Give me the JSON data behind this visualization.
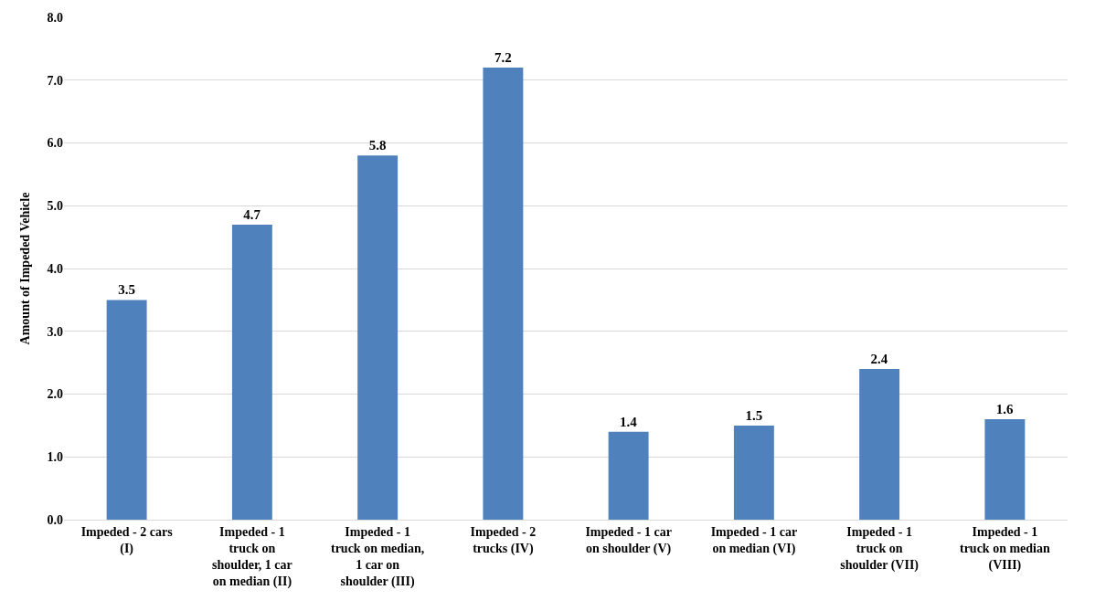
{
  "chart_data": {
    "type": "bar",
    "ylabel": "Amount of Impeded Vehicle",
    "categories": [
      "Impeded - 2 cars (I)",
      "Impeded - 1 truck on shoulder, 1 car on median (II)",
      "Impeded - 1 truck on median, 1 car on shoulder (III)",
      "Impeded - 2 trucks (IV)",
      "Impeded - 1 car on shoulder (V)",
      "Impeded - 1 car on median (VI)",
      "Impeded - 1 truck on shoulder (VII)",
      "Impeded - 1 truck on median (VIII)"
    ],
    "values": [
      3.5,
      4.7,
      5.8,
      7.2,
      1.4,
      1.5,
      2.4,
      1.6
    ],
    "color": "#4f81bd",
    "ylim": [
      0,
      8
    ],
    "yticks": [
      {
        "value": 0,
        "label": "0.0"
      },
      {
        "value": 1,
        "label": "1.0"
      },
      {
        "value": 2,
        "label": "2.0"
      },
      {
        "value": 3,
        "label": "3.0"
      },
      {
        "value": 4,
        "label": "4.0"
      },
      {
        "value": 5,
        "label": "5.0"
      },
      {
        "value": 6,
        "label": "6.0"
      },
      {
        "value": 7,
        "label": "7.0"
      },
      {
        "value": 8,
        "label": "8.0"
      }
    ],
    "grid": "y",
    "data_labels": true
  }
}
